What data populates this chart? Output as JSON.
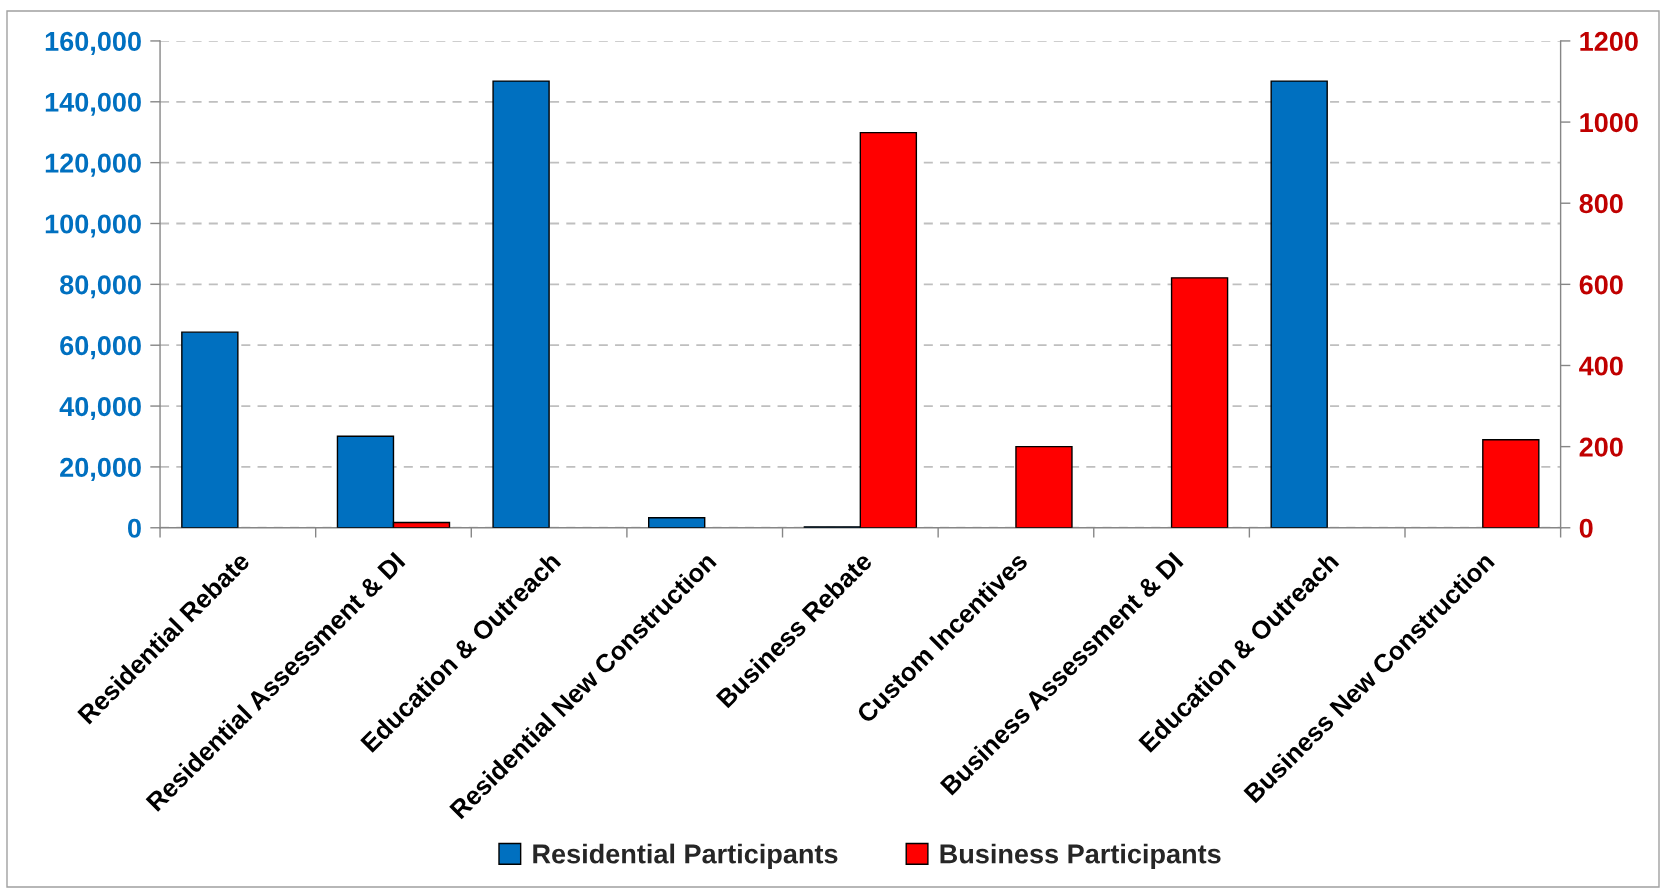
{
  "chart_data": {
    "type": "bar",
    "categories": [
      "Residential Rebate",
      "Residential Assessment & DI",
      "Education & Outreach",
      "Residential New Construction",
      "Business Rebate",
      "Custom Incentives",
      "Business Assessment & DI",
      "Education & Outreach",
      "Business New Construction"
    ],
    "series": [
      {
        "name": "Residential Participants",
        "color": "#0070c0",
        "values": [
          64300,
          30100,
          146800,
          3300,
          300,
          null,
          null,
          146800,
          null
        ]
      },
      {
        "name": "Business Participants",
        "color": "#ff0000",
        "axis": "y2",
        "values": [
          null,
          13,
          null,
          null,
          974,
          200,
          616,
          null,
          217
        ]
      }
    ],
    "ylim": [
      0,
      160000
    ],
    "yticks": [
      0,
      {
        "value": 20000,
        "label": "20,000"
      },
      {
        "value": 40000,
        "label": "40,000"
      },
      {
        "value": 60000,
        "label": "60,000"
      },
      {
        "value": 80000,
        "label": "80,000"
      },
      {
        "value": 100000,
        "label": "100,000"
      },
      {
        "value": 120000,
        "label": "120,000"
      },
      {
        "value": 140000,
        "label": "140,000"
      },
      {
        "value": 160000,
        "label": "160,000"
      }
    ],
    "y2lim": [
      0,
      1200
    ],
    "y2ticks": [
      0,
      200,
      400,
      600,
      800,
      1000,
      1200
    ],
    "grid": "y",
    "legend": "bottom"
  }
}
